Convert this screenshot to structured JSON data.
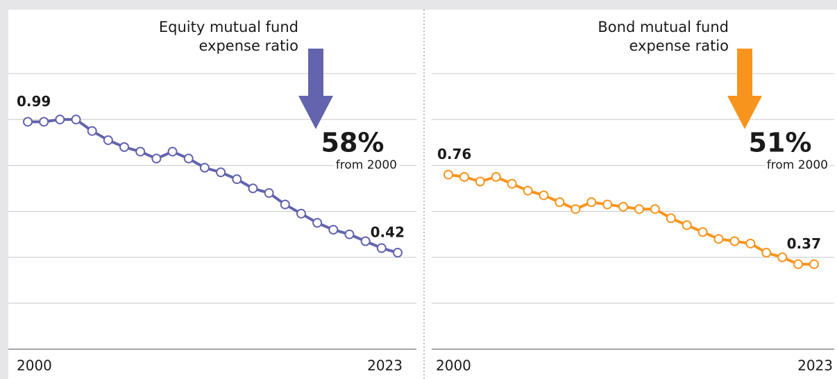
{
  "chart_data": [
    {
      "type": "line",
      "title": [
        "Equity mutual fund",
        "expense ratio"
      ],
      "change_label": "58%",
      "change_note": "from 2000",
      "categories": [
        "2000",
        null,
        null,
        null,
        null,
        null,
        null,
        null,
        null,
        null,
        null,
        null,
        null,
        null,
        null,
        null,
        null,
        null,
        null,
        null,
        null,
        null,
        null,
        "2023"
      ],
      "series": [
        {
          "color": "#6364ad",
          "values": [
            0.99,
            0.99,
            1.0,
            1.0,
            0.95,
            0.91,
            0.88,
            0.86,
            0.83,
            0.86,
            0.83,
            0.79,
            0.77,
            0.74,
            0.7,
            0.68,
            0.63,
            0.59,
            0.55,
            0.52,
            0.5,
            0.47,
            0.44,
            0.42
          ]
        }
      ],
      "ylim": [
        0,
        1.2
      ],
      "yticks": [
        0,
        0.2,
        0.4,
        0.6,
        0.8,
        1.0,
        1.2
      ],
      "grid": true
    },
    {
      "type": "line",
      "title": [
        "Bond mutual fund",
        "expense ratio"
      ],
      "change_label": "51%",
      "change_note": "from 2000",
      "categories": [
        "2000",
        null,
        null,
        null,
        null,
        null,
        null,
        null,
        null,
        null,
        null,
        null,
        null,
        null,
        null,
        null,
        null,
        null,
        null,
        null,
        null,
        null,
        null,
        "2023"
      ],
      "series": [
        {
          "color": "#f7941d",
          "values": [
            0.76,
            0.75,
            0.73,
            0.75,
            0.72,
            0.69,
            0.67,
            0.64,
            0.61,
            0.64,
            0.63,
            0.62,
            0.61,
            0.61,
            0.57,
            0.54,
            0.51,
            0.48,
            0.47,
            0.46,
            0.42,
            0.4,
            0.37,
            0.37
          ]
        }
      ],
      "ylim": [
        0,
        1.2
      ],
      "yticks": [
        0,
        0.2,
        0.4,
        0.6,
        0.8,
        1.0,
        1.2
      ],
      "grid": true
    }
  ]
}
